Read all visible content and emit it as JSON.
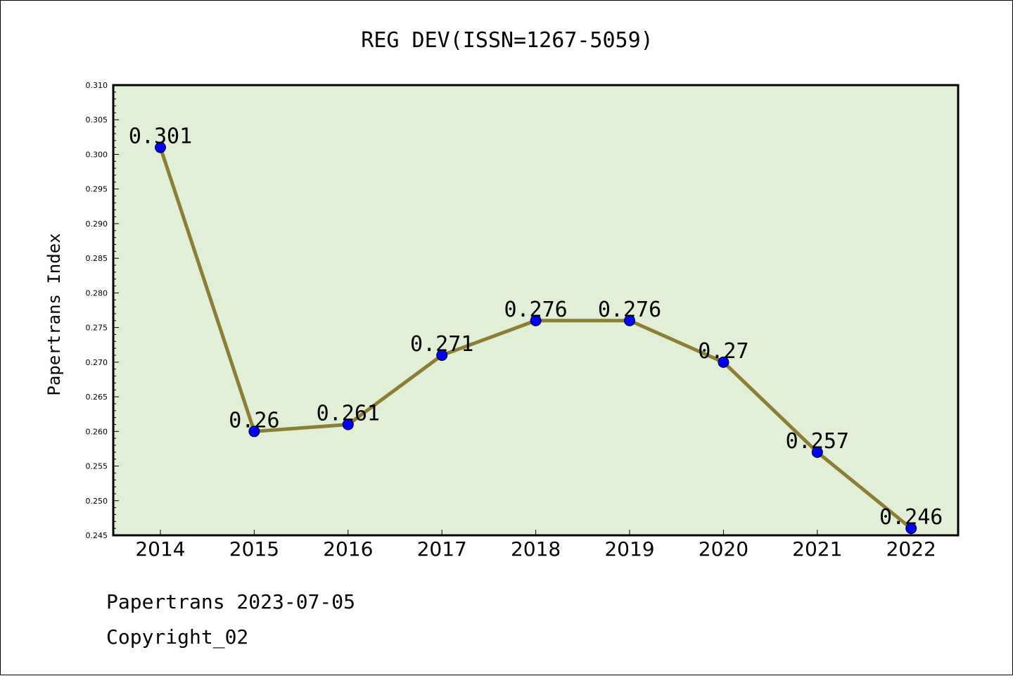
{
  "chart_data": {
    "type": "line",
    "title": "REG DEV(ISSN=1267-5059)",
    "xlabel": "",
    "ylabel": "Papertrans Index",
    "categories": [
      "2014",
      "2015",
      "2016",
      "2017",
      "2018",
      "2019",
      "2020",
      "2021",
      "2022"
    ],
    "series": [
      {
        "values": [
          0.301,
          0.26,
          0.261,
          0.271,
          0.276,
          0.276,
          0.27,
          0.257,
          0.246
        ]
      }
    ],
    "data_labels": [
      "0.301",
      "0.26",
      "0.261",
      "0.271",
      "0.276",
      "0.276",
      "0.27",
      "0.257",
      "0.246"
    ],
    "ylim": [
      0.245,
      0.31
    ],
    "ytick_labels": [
      "0.245",
      "0.250",
      "0.255",
      "0.260",
      "0.265",
      "0.270",
      "0.275",
      "0.280",
      "0.285",
      "0.290",
      "0.295",
      "0.300",
      "0.305",
      "0.310"
    ],
    "grid": false,
    "legend": "none",
    "colors": {
      "plot_background": "#e1efd6",
      "line": "#8b7f35",
      "marker": "#0000ff"
    }
  },
  "footer": {
    "line1": "Papertrans 2023-07-05",
    "line2": "Copyright_02"
  }
}
